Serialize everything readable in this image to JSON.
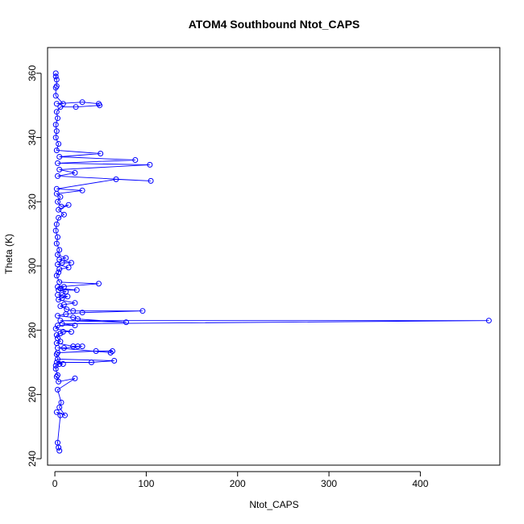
{
  "chart_data": {
    "type": "line",
    "title": "ATOM4 Southbound Ntot_CAPS",
    "xlabel": "Ntot_CAPS",
    "ylabel": "Theta (K)",
    "xlim": [
      -8,
      487
    ],
    "ylim": [
      238,
      368
    ],
    "xticks": [
      0,
      100,
      200,
      300,
      400
    ],
    "yticks": [
      240,
      260,
      280,
      300,
      320,
      340,
      360
    ],
    "grid": false,
    "series_color": "#0000ff",
    "series": [
      {
        "markers": "open-circle",
        "points": [
          [
            5,
            242.5
          ],
          [
            4,
            243.5
          ],
          [
            3,
            245
          ],
          [
            6,
            253.5
          ],
          [
            2,
            254.5
          ],
          [
            11,
            253.5
          ],
          [
            5,
            256
          ],
          [
            7,
            257.5
          ],
          [
            3,
            261.5
          ],
          [
            22,
            265
          ],
          [
            4,
            264
          ],
          [
            2,
            265.5
          ],
          [
            3,
            266
          ],
          [
            1,
            268
          ],
          [
            1,
            269
          ],
          [
            5,
            269.5
          ],
          [
            9,
            269.5
          ],
          [
            2,
            270
          ],
          [
            40,
            270
          ],
          [
            65,
            270.5
          ],
          [
            3,
            271
          ],
          [
            2,
            272.5
          ],
          [
            3,
            273
          ],
          [
            45,
            273.5
          ],
          [
            63,
            273.5
          ],
          [
            61,
            273
          ],
          [
            3,
            274.5
          ],
          [
            10,
            274.5
          ],
          [
            30,
            275
          ],
          [
            25,
            275
          ],
          [
            20,
            275
          ],
          [
            2,
            276
          ],
          [
            6,
            276.5
          ],
          [
            3,
            277.5
          ],
          [
            2,
            278.5
          ],
          [
            6,
            279
          ],
          [
            9,
            279.5
          ],
          [
            18,
            279.5
          ],
          [
            1,
            280.5
          ],
          [
            3,
            281.5
          ],
          [
            22,
            281.5
          ],
          [
            8,
            282
          ],
          [
            475,
            283
          ],
          [
            6,
            283
          ],
          [
            78,
            282.5
          ],
          [
            25,
            283.5
          ],
          [
            20,
            284
          ],
          [
            3,
            284.5
          ],
          [
            12,
            285
          ],
          [
            30,
            285.5
          ],
          [
            96,
            286
          ],
          [
            20,
            286
          ],
          [
            13,
            286.5
          ],
          [
            6,
            287.5
          ],
          [
            10,
            288
          ],
          [
            22,
            288.5
          ],
          [
            4,
            289.5
          ],
          [
            8,
            290
          ],
          [
            14,
            290.5
          ],
          [
            3,
            291
          ],
          [
            8,
            291
          ],
          [
            12,
            292
          ],
          [
            4,
            292.5
          ],
          [
            24,
            292.5
          ],
          [
            6,
            293
          ],
          [
            10,
            293.5
          ],
          [
            3,
            293.5
          ],
          [
            48,
            294.5
          ],
          [
            5,
            295
          ],
          [
            2,
            297
          ],
          [
            4,
            298
          ],
          [
            5,
            299
          ],
          [
            15,
            299.5
          ],
          [
            3,
            300.5
          ],
          [
            8,
            301
          ],
          [
            18,
            301
          ],
          [
            5,
            302
          ],
          [
            12,
            302.5
          ],
          [
            3,
            303.5
          ],
          [
            5,
            305
          ],
          [
            2,
            307
          ],
          [
            3,
            309
          ],
          [
            1,
            311
          ],
          [
            2,
            313
          ],
          [
            4,
            315
          ],
          [
            10,
            316
          ],
          [
            4,
            317.5
          ],
          [
            15,
            319
          ],
          [
            7,
            318.5
          ],
          [
            3,
            320
          ],
          [
            6,
            321.5
          ],
          [
            2,
            322.5
          ],
          [
            30,
            323.5
          ],
          [
            2,
            324
          ],
          [
            67,
            327
          ],
          [
            105,
            326.5
          ],
          [
            3,
            328
          ],
          [
            22,
            329
          ],
          [
            5,
            330
          ],
          [
            104,
            331.5
          ],
          [
            3,
            332
          ],
          [
            88,
            333
          ],
          [
            5,
            334
          ],
          [
            50,
            335
          ],
          [
            2,
            336
          ],
          [
            4,
            338
          ],
          [
            1,
            340
          ],
          [
            2,
            342
          ],
          [
            1,
            344
          ],
          [
            3,
            346
          ],
          [
            2,
            348
          ],
          [
            6,
            349.5
          ],
          [
            23,
            349.5
          ],
          [
            49,
            350
          ],
          [
            48,
            350.5
          ],
          [
            30,
            351
          ],
          [
            2,
            350.5
          ],
          [
            9,
            350.5
          ],
          [
            1,
            353
          ],
          [
            1,
            355.5
          ],
          [
            2,
            356
          ],
          [
            2,
            358
          ],
          [
            1,
            359
          ],
          [
            1,
            360
          ]
        ]
      }
    ]
  }
}
